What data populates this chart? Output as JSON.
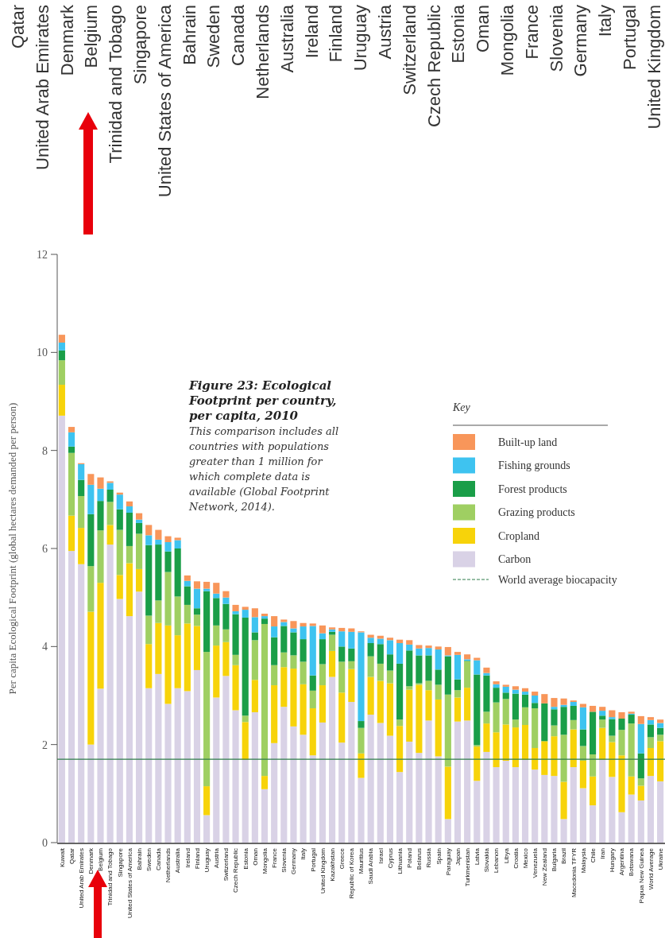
{
  "chart_data": {
    "type": "bar",
    "stacked": true,
    "title": "Figure 23: Ecological Footprint per country, per capita, 2010",
    "subtitle": "This comparison includes all countries with populations greater than 1 million for which complete data is available (Global Footprint Network, 2014).",
    "ylabel": "Per capita Ecological Footprint (global hectares demanded per person)",
    "legend_title": "Key",
    "legend": "top right",
    "categories": [
      "Kuwait",
      "Qatar",
      "United Arab Emirates",
      "Denmark",
      "Belgium",
      "Trinidad and Tobago",
      "Singapore",
      "United States of America",
      "Bahrain",
      "Sweden",
      "Canada",
      "Netherlands",
      "Australia",
      "Ireland",
      "Finland",
      "Uruguay",
      "Austria",
      "Switzerland",
      "Czech Republic",
      "Estonia",
      "Oman",
      "Mongolia",
      "France",
      "Slovenia",
      "Germany",
      "Italy",
      "Portugal",
      "United Kingdom",
      "Kazakhstan",
      "Greece",
      "Republic of Korea",
      "Mauritius",
      "Saudi Arabia",
      "Israel",
      "Cyprus",
      "Lithuania",
      "Poland",
      "Belarus",
      "Russia",
      "Spain",
      "Paraguay",
      "Japan",
      "Turkmenistan",
      "Latvia",
      "Slovakia",
      "Lebanon",
      "Libya",
      "Croatia",
      "Mexico",
      "Venezuela",
      "New Zealand",
      "Bulgaria",
      "Brazil",
      "Macedonia TFYR",
      "Malaysia",
      "Chile",
      "Iran",
      "Hungary",
      "Argentina",
      "Botswana",
      "Papua New Guinea",
      "World Average",
      "Ukraine"
    ],
    "series": [
      {
        "name": "Carbon",
        "color": "#d9d2e6",
        "values": [
          8.71,
          5.95,
          5.68,
          2.0,
          3.14,
          6.08,
          4.97,
          4.62,
          5.12,
          3.15,
          3.44,
          2.83,
          3.15,
          3.09,
          3.52,
          0.56,
          2.96,
          3.4,
          2.7,
          1.69,
          2.66,
          1.09,
          2.03,
          2.77,
          2.37,
          2.2,
          1.78,
          2.45,
          3.38,
          2.04,
          2.87,
          1.32,
          2.61,
          2.44,
          2.18,
          1.44,
          2.06,
          1.83,
          2.49,
          1.76,
          0.48,
          2.47,
          2.49,
          1.26,
          1.85,
          1.54,
          1.67,
          1.54,
          1.69,
          1.49,
          1.38,
          1.36,
          0.48,
          1.54,
          1.11,
          0.76,
          1.69,
          1.34,
          0.62,
          0.98,
          0.86,
          1.36,
          1.25
        ]
      },
      {
        "name": "Cropland",
        "color": "#f7d30a",
        "values": [
          0.63,
          0.72,
          0.74,
          2.71,
          2.16,
          0.4,
          0.49,
          1.08,
          0.46,
          0.9,
          1.04,
          1.6,
          1.08,
          1.38,
          0.9,
          0.59,
          1.06,
          0.69,
          0.92,
          0.77,
          0.66,
          0.27,
          1.18,
          0.81,
          1.18,
          1.03,
          0.96,
          0.76,
          0.53,
          1.02,
          0.67,
          0.5,
          0.77,
          0.86,
          1.07,
          0.94,
          1.06,
          1.39,
          0.62,
          1.16,
          1.07,
          0.49,
          0.67,
          0.7,
          0.58,
          0.71,
          0.74,
          0.81,
          0.71,
          0.44,
          0.69,
          0.81,
          0.76,
          0.77,
          0.56,
          0.59,
          0.65,
          0.71,
          1.16,
          0.37,
          0.3,
          0.57,
          0.82
        ]
      },
      {
        "name": "Grazing products",
        "color": "#9fcf62",
        "values": [
          0.5,
          1.28,
          0.65,
          0.93,
          1.07,
          0.47,
          0.92,
          0.35,
          0.72,
          0.58,
          0.46,
          1.09,
          0.79,
          0.38,
          0.23,
          2.74,
          0.41,
          0.26,
          0.21,
          0.13,
          0.81,
          3.1,
          0.41,
          0.3,
          0.27,
          0.46,
          0.36,
          0.43,
          0.33,
          0.63,
          0.16,
          0.52,
          0.42,
          0.35,
          0.26,
          0.13,
          0.07,
          0.03,
          0.19,
          0.3,
          1.47,
          0.15,
          0.54,
          0.03,
          0.24,
          0.61,
          0.52,
          0.16,
          0.36,
          0.81,
          null,
          0.22,
          0.96,
          0.19,
          0.3,
          0.45,
          0.17,
          0.13,
          0.52,
          1.08,
          0.15,
          0.22,
          0.13
        ]
      },
      {
        "name": "Forest products",
        "color": "#1a9e48",
        "values": [
          0.2,
          0.13,
          0.33,
          1.06,
          0.6,
          0.25,
          0.42,
          0.68,
          0.22,
          1.44,
          1.14,
          0.42,
          0.98,
          0.38,
          0.13,
          1.24,
          0.56,
          0.52,
          0.83,
          2.0,
          0.16,
          0.11,
          0.57,
          0.54,
          0.47,
          0.46,
          0.31,
          0.51,
          0.06,
          0.31,
          0.26,
          0.14,
          0.27,
          0.4,
          0.33,
          1.14,
          0.73,
          0.57,
          0.52,
          0.31,
          0.78,
          0.22,
          0.01,
          1.44,
          0.74,
          0.3,
          0.13,
          0.53,
          0.26,
          0.11,
          0.77,
          0.33,
          0.57,
          0.29,
          0.34,
          0.87,
          0.08,
          0.34,
          0.23,
          0.18,
          0.51,
          0.26,
          0.14
        ]
      },
      {
        "name": "Fishing grounds",
        "color": "#3ec3f0",
        "values": [
          0.16,
          0.29,
          0.32,
          0.6,
          0.25,
          0.14,
          0.3,
          0.13,
          0.07,
          0.2,
          0.1,
          0.19,
          0.17,
          0.11,
          0.4,
          0.05,
          0.09,
          0.13,
          0.06,
          0.16,
          0.31,
          0.05,
          0.22,
          0.08,
          0.08,
          0.26,
          1.01,
          0.12,
          0.05,
          0.31,
          0.34,
          1.81,
          0.11,
          0.11,
          0.29,
          0.42,
          0.12,
          0.14,
          0.15,
          0.41,
          0.02,
          0.5,
          0.03,
          0.29,
          0.05,
          0.07,
          0.12,
          0.08,
          0.06,
          0.15,
          null,
          0.05,
          0.04,
          0.08,
          0.45,
          null,
          0.1,
          0.04,
          null,
          0.02,
          0.6,
          0.09,
          0.1
        ]
      },
      {
        "name": "Built-up land",
        "color": "#f8965a",
        "values": [
          0.16,
          0.11,
          0.02,
          0.22,
          0.23,
          0.03,
          0.04,
          0.1,
          0.13,
          0.21,
          0.2,
          0.12,
          0.05,
          0.11,
          0.15,
          0.14,
          0.22,
          0.13,
          0.13,
          0.06,
          0.18,
          0.05,
          0.21,
          0.05,
          0.15,
          0.07,
          0.05,
          0.16,
          0.04,
          0.07,
          0.07,
          0.02,
          0.06,
          0.06,
          0.05,
          0.07,
          0.09,
          0.07,
          0.05,
          0.06,
          0.17,
          0.06,
          0.1,
          0.05,
          0.11,
          0.06,
          0.04,
          0.07,
          0.07,
          0.08,
          0.19,
          0.18,
          0.13,
          0.03,
          0.07,
          0.12,
          0.08,
          0.14,
          0.13,
          0.04,
          0.16,
          0.06,
          0.07
        ]
      }
    ],
    "ylim": [
      0,
      12
    ],
    "yticks": [
      0,
      2,
      4,
      6,
      8,
      10,
      12
    ],
    "ref_lines": [
      {
        "axis": "y",
        "value": 1.7,
        "label": "World average biocapacity",
        "color": "#2f7d4a"
      }
    ]
  }
}
